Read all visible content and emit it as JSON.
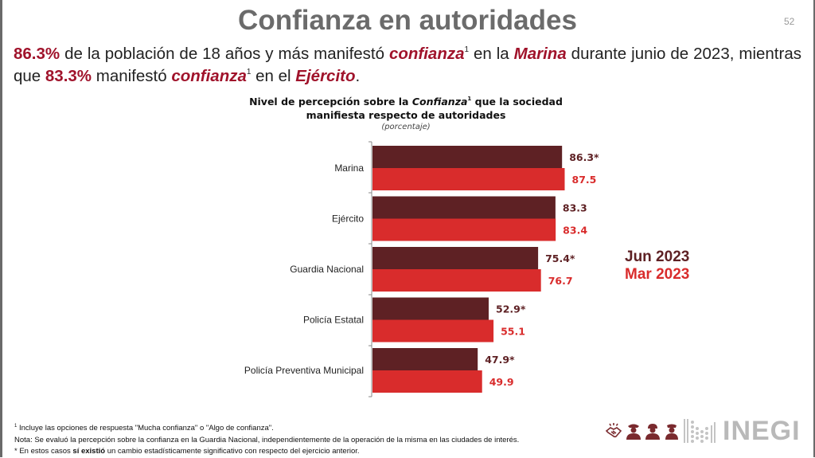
{
  "slide": {
    "title": "Confianza en autoridades",
    "page_number": "52",
    "lead": {
      "p1_pct": "86.3%",
      "p1_text_a": " de la población de 18 años y más manifestó ",
      "p1_kw": "confianza",
      "sup": "1",
      "p1_text_b": " en la ",
      "p1_entity": "Marina",
      "p1_text_c": " durante junio de 2023, mientras que ",
      "p2_pct": "83.3%",
      "p2_text_a": " manifestó ",
      "p2_kw": "confianza",
      "p2_text_b": " en el ",
      "p2_entity": "Ejército",
      "p2_end": "."
    },
    "footnotes": {
      "f1_mark": "1",
      "f1": " Incluye las opciones de respuesta \"Mucha confianza\" o \"Algo de confianza\".",
      "f2": "Nota: Se evaluó la percepción sobre la confianza en la Guardia Nacional, independientemente de la operación de la misma en las ciudades de interés.",
      "f3_mark": "*",
      "f3_a": " En estos casos ",
      "f3_bold": "sí existió",
      "f3_b": " un cambio estadísticamente significativo con respecto del ejercicio anterior."
    },
    "logos": {
      "icons": [
        "handshake-icon",
        "police-officer-icon",
        "soldier-icon",
        "marine-officer-icon"
      ],
      "brand": "INEGI"
    }
  },
  "chart_data": {
    "type": "bar",
    "orientation": "horizontal",
    "title_a": "Nivel de percepción sobre la ",
    "title_kw": "Confianza",
    "title_sup": "1",
    "title_b": " que la sociedad",
    "title_line2": "manifiesta respecto de autoridades",
    "subtitle": "(porcentaje)",
    "categories": [
      "Marina",
      "Ejército",
      "Guardia Nacional",
      "Policía Estatal",
      "Policía Preventiva Municipal"
    ],
    "series": [
      {
        "name": "Jun 2023",
        "color": "#5e2124",
        "values": [
          86.3,
          83.3,
          75.4,
          52.9,
          47.9
        ],
        "labels": [
          "86.3*",
          "83.3",
          "75.4*",
          "52.9*",
          "47.9*"
        ]
      },
      {
        "name": "Mar 2023",
        "color": "#d92c2c",
        "values": [
          87.5,
          83.4,
          76.7,
          55.1,
          49.9
        ],
        "labels": [
          "87.5",
          "83.4",
          "76.7",
          "55.1",
          "49.9"
        ]
      }
    ],
    "xlim": [
      0,
      100
    ],
    "grid": false,
    "legend_position": "right",
    "xlabel": "",
    "ylabel": ""
  }
}
